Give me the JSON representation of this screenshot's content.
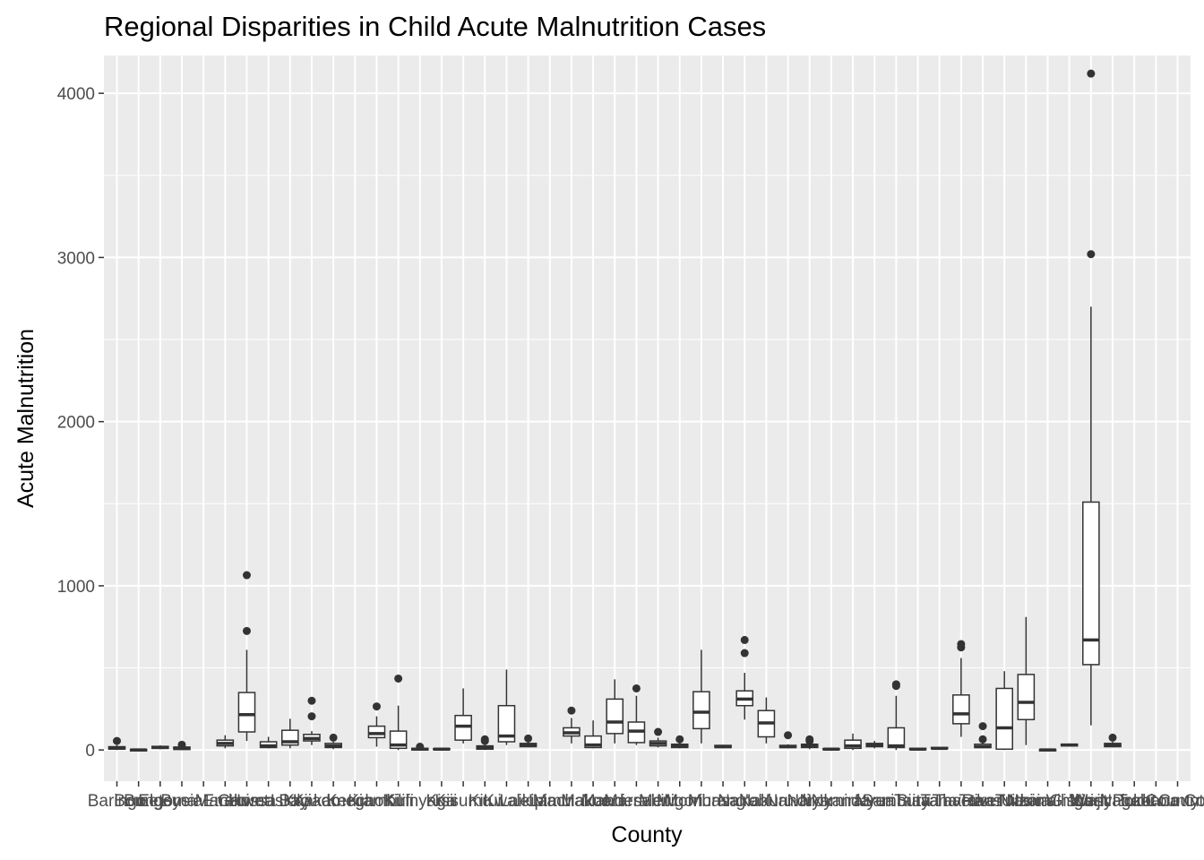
{
  "chart_data": {
    "type": "boxplot",
    "title": "Regional Disparities in Child Acute Malnutrition Cases",
    "xlabel": "County",
    "ylabel": "Acute Malnutrition",
    "ylim": [
      -190,
      4230
    ],
    "yticks": [
      0,
      1000,
      2000,
      3000,
      4000
    ],
    "grid": true,
    "legend": "none",
    "colors": {
      "panel": "#ebebeb",
      "grid": "#ffffff",
      "box_fill": "#ffffff",
      "box_line": "#333333",
      "tick_text": "#4d4d4d"
    },
    "categories": [
      "Baringo",
      "Bomet",
      "Bungoma",
      "Busia",
      "Elgeyo Marakwet",
      "Embu",
      "Garissa",
      "Homa Bay",
      "Isiolo",
      "Kajiado",
      "Kakamega",
      "Kericho",
      "Kiambu",
      "Kilifi",
      "Kirinyaga",
      "Kisii",
      "Kisumu",
      "Kitui",
      "Kwale",
      "Laikipia",
      "Lamu",
      "Machakos",
      "Makueni",
      "Mandera",
      "Marsabit",
      "Meru",
      "Migori",
      "Mombasa",
      "Murang'a",
      "Nairobi",
      "Nakuru",
      "Nandi",
      "Narok",
      "Nyamira",
      "Nyandarua",
      "Nyeri",
      "Samburu",
      "Siaya",
      "Taita Taveta",
      "Tana River",
      "Tharaka Nithi",
      "Trans Nzoia",
      "Turkana",
      "Uasin Gishu",
      "Vihiga",
      "Wajir",
      "West Pokot",
      "Kirinyaga County",
      "Nairobi County",
      "Turkana County"
    ],
    "boxes": [
      {
        "min": 0,
        "q1": 5,
        "median": 12,
        "q3": 20,
        "max": 30,
        "outliers": [
          55
        ]
      },
      {
        "min": -10,
        "q1": -5,
        "median": 0,
        "q3": 3,
        "max": 8,
        "outliers": []
      },
      {
        "min": 5,
        "q1": 10,
        "median": 15,
        "q3": 22,
        "max": 28,
        "outliers": []
      },
      {
        "min": 0,
        "q1": 3,
        "median": 10,
        "q3": 18,
        "max": 22,
        "outliers": [
          32
        ]
      },
      null,
      {
        "min": 10,
        "q1": 25,
        "median": 40,
        "q3": 60,
        "max": 90,
        "outliers": []
      },
      {
        "min": 55,
        "q1": 110,
        "median": 215,
        "q3": 350,
        "max": 610,
        "outliers": [
          725,
          1065
        ]
      },
      {
        "min": 10,
        "q1": 15,
        "median": 25,
        "q3": 50,
        "max": 80,
        "outliers": []
      },
      {
        "min": 10,
        "q1": 30,
        "median": 50,
        "q3": 120,
        "max": 190,
        "outliers": []
      },
      {
        "min": 30,
        "q1": 55,
        "median": 70,
        "q3": 95,
        "max": 115,
        "outliers": [
          205,
          300
        ]
      },
      {
        "min": 5,
        "q1": 15,
        "median": 25,
        "q3": 40,
        "max": 50,
        "outliers": [
          75
        ]
      },
      null,
      {
        "min": 20,
        "q1": 75,
        "median": 100,
        "q3": 145,
        "max": 205,
        "outliers": [
          265
        ]
      },
      {
        "min": 0,
        "q1": 10,
        "median": 30,
        "q3": 115,
        "max": 270,
        "outliers": [
          435
        ]
      },
      {
        "min": -5,
        "q1": 0,
        "median": 5,
        "q3": 10,
        "max": 15,
        "outliers": [
          20
        ]
      },
      {
        "min": 0,
        "q1": 2,
        "median": 5,
        "q3": 8,
        "max": 10,
        "outliers": []
      },
      {
        "min": 40,
        "q1": 60,
        "median": 145,
        "q3": 210,
        "max": 375,
        "outliers": []
      },
      {
        "min": 0,
        "q1": 5,
        "median": 15,
        "q3": 25,
        "max": 40,
        "outliers": [
          55,
          65
        ]
      },
      {
        "min": 30,
        "q1": 50,
        "median": 85,
        "q3": 270,
        "max": 490,
        "outliers": []
      },
      {
        "min": 15,
        "q1": 20,
        "median": 30,
        "q3": 40,
        "max": 50,
        "outliers": [
          70
        ]
      },
      null,
      {
        "min": 40,
        "q1": 85,
        "median": 105,
        "q3": 135,
        "max": 195,
        "outliers": [
          240
        ]
      },
      {
        "min": 10,
        "q1": 15,
        "median": 30,
        "q3": 85,
        "max": 180,
        "outliers": []
      },
      {
        "min": 40,
        "q1": 100,
        "median": 170,
        "q3": 310,
        "max": 430,
        "outliers": []
      },
      {
        "min": 30,
        "q1": 45,
        "median": 115,
        "q3": 170,
        "max": 330,
        "outliers": [
          375
        ]
      },
      {
        "min": 15,
        "q1": 25,
        "median": 40,
        "q3": 55,
        "max": 75,
        "outliers": [
          110
        ]
      },
      {
        "min": 10,
        "q1": 15,
        "median": 25,
        "q3": 35,
        "max": 45,
        "outliers": [
          65
        ]
      },
      {
        "min": 40,
        "q1": 130,
        "median": 230,
        "q3": 355,
        "max": 610,
        "outliers": []
      },
      {
        "min": 10,
        "q1": 15,
        "median": 20,
        "q3": 28,
        "max": 32,
        "outliers": []
      },
      {
        "min": 185,
        "q1": 270,
        "median": 310,
        "q3": 360,
        "max": 470,
        "outliers": [
          590,
          670
        ]
      },
      {
        "min": 40,
        "q1": 80,
        "median": 165,
        "q3": 240,
        "max": 320,
        "outliers": []
      },
      {
        "min": 10,
        "q1": 15,
        "median": 20,
        "q3": 28,
        "max": 35,
        "outliers": [
          90
        ]
      },
      {
        "min": 5,
        "q1": 15,
        "median": 25,
        "q3": 35,
        "max": 45,
        "outliers": [
          55,
          65
        ]
      },
      {
        "min": 0,
        "q1": 2,
        "median": 5,
        "q3": 8,
        "max": 12,
        "outliers": []
      },
      {
        "min": 0,
        "q1": 10,
        "median": 25,
        "q3": 60,
        "max": 100,
        "outliers": []
      },
      {
        "min": 10,
        "q1": 20,
        "median": 30,
        "q3": 40,
        "max": 55,
        "outliers": []
      },
      {
        "min": 0,
        "q1": 15,
        "median": 25,
        "q3": 135,
        "max": 330,
        "outliers": [
          390,
          400
        ]
      },
      {
        "min": 0,
        "q1": 2,
        "median": 5,
        "q3": 10,
        "max": 12,
        "outliers": []
      },
      {
        "min": 5,
        "q1": 8,
        "median": 10,
        "q3": 15,
        "max": 18,
        "outliers": []
      },
      {
        "min": 80,
        "q1": 160,
        "median": 220,
        "q3": 335,
        "max": 560,
        "outliers": [
          625,
          645
        ]
      },
      {
        "min": 10,
        "q1": 15,
        "median": 20,
        "q3": 35,
        "max": 45,
        "outliers": [
          65,
          145
        ]
      },
      {
        "min": 0,
        "q1": 5,
        "median": 135,
        "q3": 375,
        "max": 480,
        "outliers": []
      },
      {
        "min": 30,
        "q1": 185,
        "median": 290,
        "q3": 460,
        "max": 810,
        "outliers": []
      },
      {
        "min": -10,
        "q1": -5,
        "median": 0,
        "q3": 3,
        "max": 5,
        "outliers": []
      },
      {
        "min": 20,
        "q1": 25,
        "median": 30,
        "q3": 35,
        "max": 40,
        "outliers": []
      },
      {
        "min": 150,
        "q1": 520,
        "median": 670,
        "q3": 1510,
        "max": 2700,
        "outliers": [
          3020,
          4120
        ]
      },
      {
        "min": 15,
        "q1": 20,
        "median": 30,
        "q3": 40,
        "max": 50,
        "outliers": [
          75
        ]
      },
      null,
      null,
      null
    ]
  }
}
